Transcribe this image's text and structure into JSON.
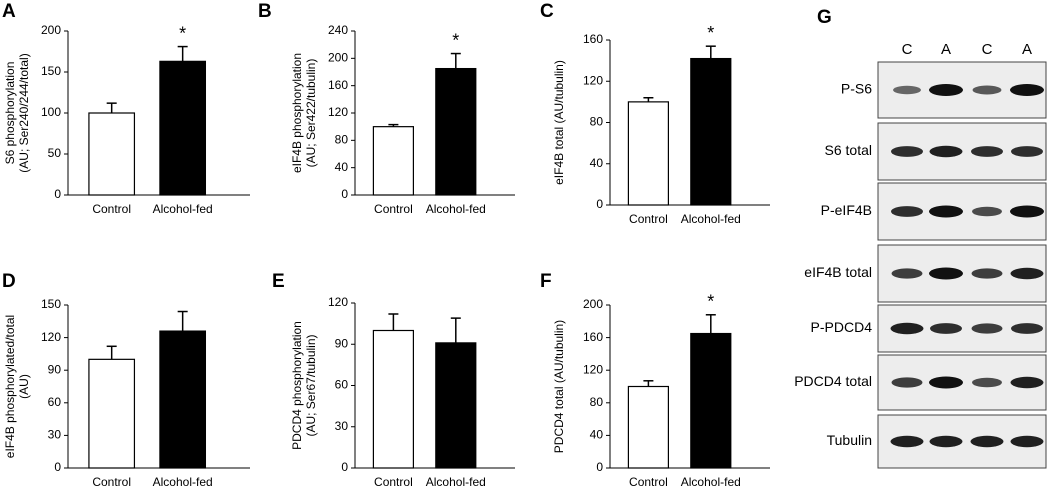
{
  "chart_data": [
    {
      "type": "bar",
      "panel": "A",
      "ylabel": [
        "S6 phosphorylation",
        "(AU; Ser240/244/total)"
      ],
      "categories": [
        "Control",
        "Alcohol-fed"
      ],
      "values": [
        100,
        163
      ],
      "errors": [
        12,
        18
      ],
      "colors": [
        "#ffffff",
        "#000000"
      ],
      "annotations": [
        null,
        "*"
      ],
      "ylim": [
        0,
        200
      ],
      "yticks": [
        0,
        50,
        100,
        150,
        200
      ]
    },
    {
      "type": "bar",
      "panel": "B",
      "ylabel": [
        "eIF4B phosphorylation",
        "(AU; Ser422/tubulin)"
      ],
      "categories": [
        "Control",
        "Alcohol-fed"
      ],
      "values": [
        100,
        185
      ],
      "errors": [
        3,
        22
      ],
      "colors": [
        "#ffffff",
        "#000000"
      ],
      "annotations": [
        null,
        "*"
      ],
      "ylim": [
        0,
        240
      ],
      "yticks": [
        0,
        40,
        80,
        120,
        160,
        200,
        240
      ]
    },
    {
      "type": "bar",
      "panel": "C",
      "ylabel": [
        "eIF4B total  (AU/tubulin)"
      ],
      "categories": [
        "Control",
        "Alcohol-fed"
      ],
      "values": [
        100,
        142
      ],
      "errors": [
        4,
        12
      ],
      "colors": [
        "#ffffff",
        "#000000"
      ],
      "annotations": [
        null,
        "*"
      ],
      "ylim": [
        0,
        160
      ],
      "yticks": [
        0,
        40,
        80,
        120,
        160
      ]
    },
    {
      "type": "bar",
      "panel": "D",
      "ylabel": [
        "eIF4B phosphorylated/total",
        "(AU)"
      ],
      "categories": [
        "Control",
        "Alcohol-fed"
      ],
      "values": [
        100,
        126
      ],
      "errors": [
        12,
        18
      ],
      "colors": [
        "#ffffff",
        "#000000"
      ],
      "ylim": [
        0,
        150
      ],
      "yticks": [
        0,
        30,
        60,
        90,
        120,
        150
      ]
    },
    {
      "type": "bar",
      "panel": "E",
      "ylabel": [
        "PDCD4 phosphorylation",
        "(AU; Ser67/tubulin)"
      ],
      "categories": [
        "Control",
        "Alcohol-fed"
      ],
      "values": [
        100,
        91
      ],
      "errors": [
        12,
        18
      ],
      "colors": [
        "#ffffff",
        "#000000"
      ],
      "ylim": [
        0,
        120
      ],
      "yticks": [
        0,
        30,
        60,
        90,
        120
      ]
    },
    {
      "type": "bar",
      "panel": "F",
      "ylabel": [
        "PDCD4 total  (AU/tubulin)"
      ],
      "categories": [
        "Control",
        "Alcohol-fed"
      ],
      "values": [
        100,
        165
      ],
      "errors": [
        7,
        23
      ],
      "colors": [
        "#ffffff",
        "#000000"
      ],
      "annotations": [
        null,
        "*"
      ],
      "ylim": [
        0,
        200
      ],
      "yticks": [
        0,
        40,
        80,
        120,
        160,
        200
      ]
    }
  ],
  "blot": {
    "panel": "G",
    "lanes": [
      "C",
      "A",
      "C",
      "A"
    ],
    "rows": [
      "P-S6",
      "S6 total",
      "P-eIF4B",
      "eIF4B total",
      "P-PDCD4",
      "PDCD4 total",
      "Tubulin"
    ]
  }
}
